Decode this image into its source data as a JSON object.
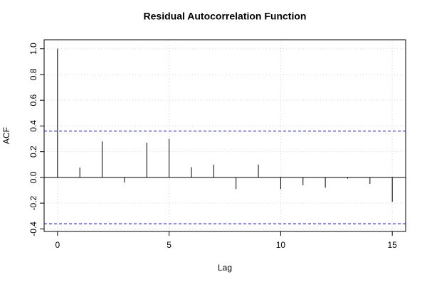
{
  "chart_data": {
    "type": "acf",
    "title": "Residual Autocorrelation Function",
    "x_label": "Lag",
    "y_label": "ACF",
    "x": [
      0,
      1,
      2,
      3,
      4,
      5,
      6,
      7,
      8,
      9,
      10,
      11,
      12,
      13,
      14,
      15
    ],
    "values": [
      1.0,
      0.077,
      0.28,
      -0.04,
      0.27,
      0.3,
      0.08,
      0.1,
      -0.09,
      0.1,
      -0.09,
      -0.06,
      -0.08,
      -0.01,
      -0.05,
      -0.19
    ],
    "color": "#000000",
    "conf_bands": [
      0.36,
      -0.36
    ],
    "conf_color": "#0000ff",
    "xlim": [
      -0.6,
      15.6
    ],
    "xticks": [
      0,
      5,
      10,
      15
    ],
    "ylim": [
      -0.42,
      1.07
    ],
    "yticks": [
      -0.4,
      -0.2,
      {
        "value": 0,
        "label": "0.0"
      },
      0.2,
      0.4,
      0.6,
      0.8,
      {
        "value": 1,
        "label": "1.0"
      }
    ],
    "grid": true
  }
}
